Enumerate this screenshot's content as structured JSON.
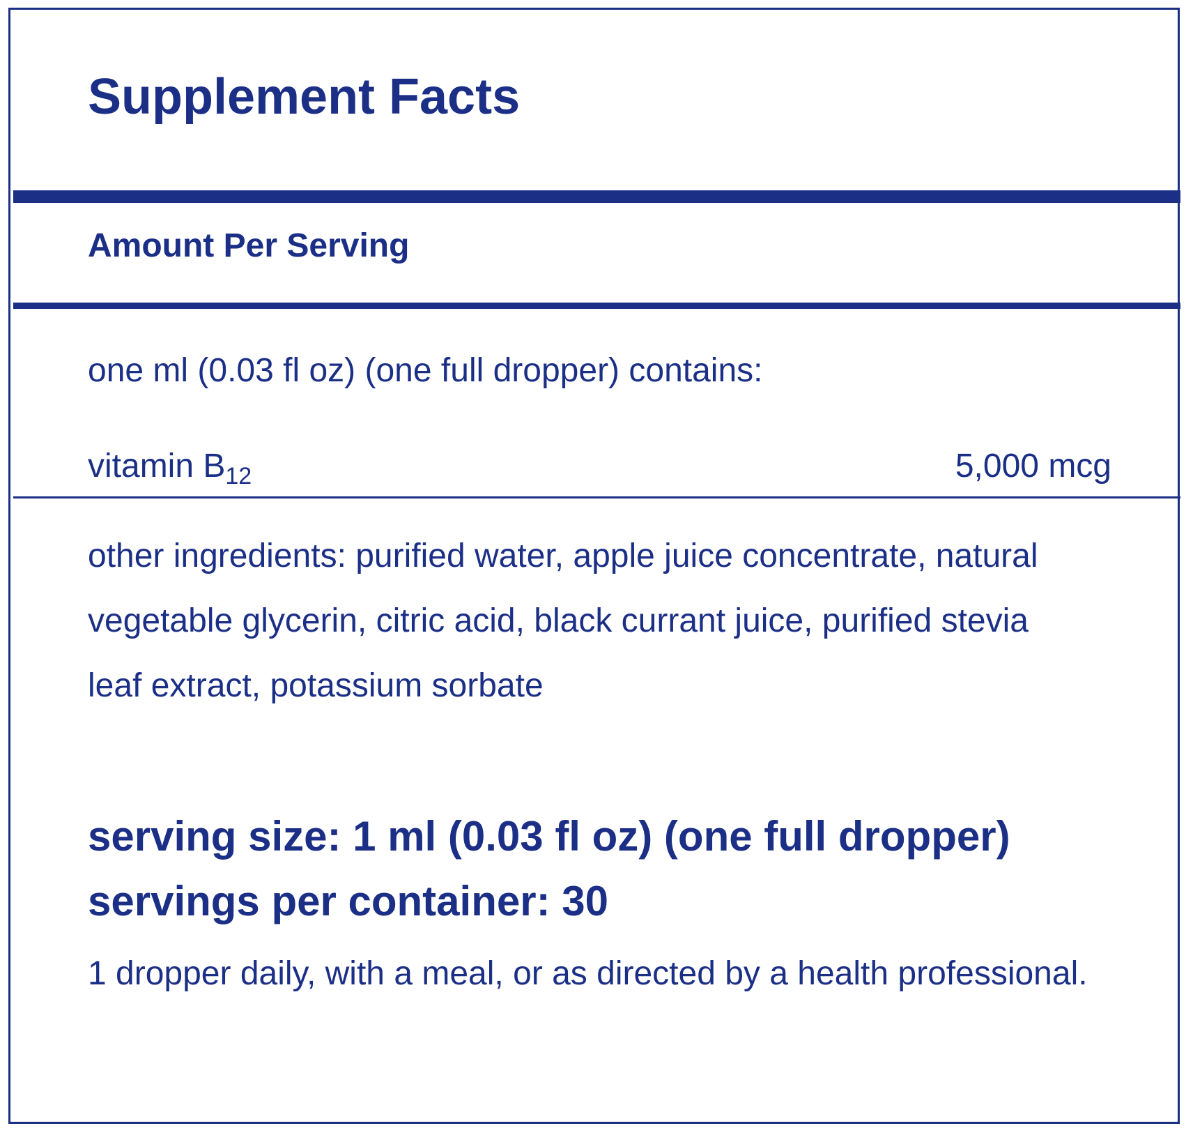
{
  "label": {
    "title": "Supplement Facts",
    "amount_per_serving": "Amount Per Serving",
    "contains_line": "one ml (0.03 fl oz) (one full dropper) contains:",
    "nutrient": {
      "name": "vitamin B",
      "subscript": "12",
      "amount": "5,000 mcg"
    },
    "other_ingredients": "other ingredients: purified water, apple juice concentrate, natural vegetable glycerin, citric acid, black currant juice, purified stevia leaf extract, potassium sorbate",
    "serving_size": "serving size: 1 ml (0.03 fl oz) (one full dropper)",
    "servings_per_container": "servings per container: 30",
    "directions": "1 dropper daily, with a meal, or as directed by a health professional."
  },
  "colors": {
    "brand_navy": "#1b2f86",
    "background": "#ffffff"
  }
}
